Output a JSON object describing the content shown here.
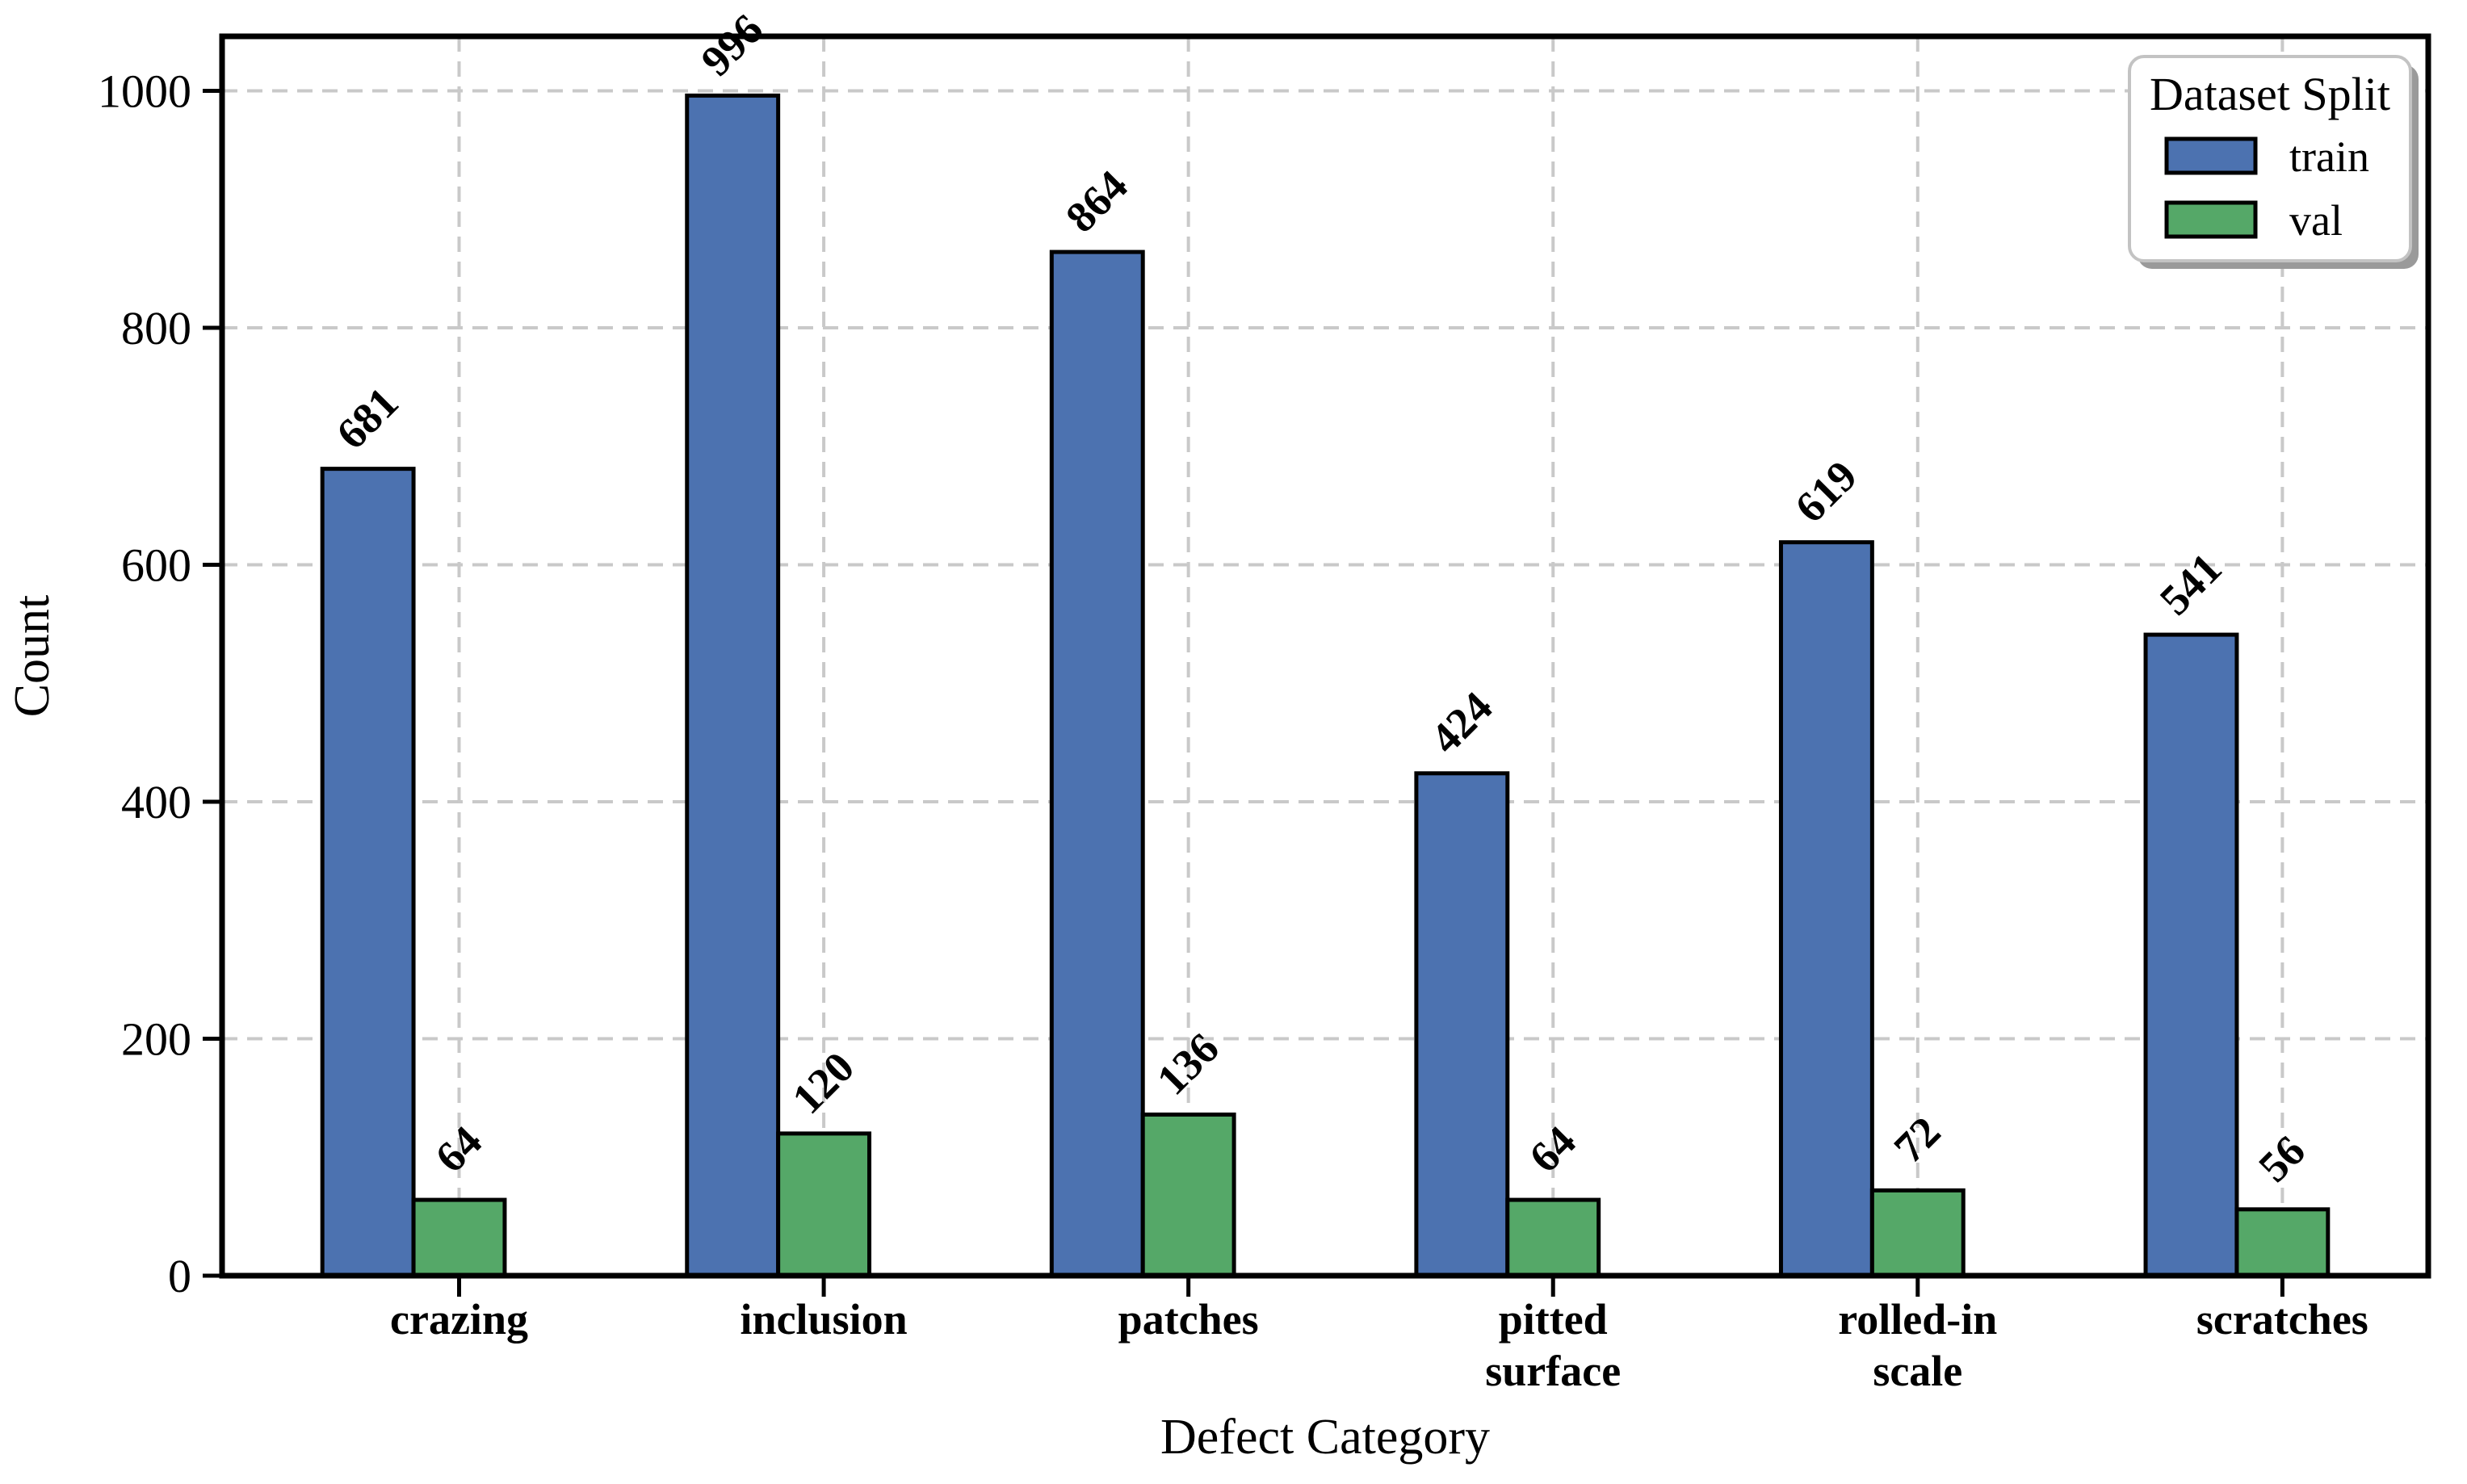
{
  "chart_data": {
    "type": "bar",
    "title": "",
    "xlabel": "Defect Category",
    "ylabel": "Count",
    "categories": [
      "crazing",
      "inclusion",
      "patches",
      "pitted\nsurface",
      "rolled-in\nscale",
      "scratches"
    ],
    "series": [
      {
        "name": "train",
        "color": "#4C72B0",
        "values": [
          681,
          996,
          864,
          424,
          619,
          541
        ]
      },
      {
        "name": "val",
        "color": "#55A868",
        "values": [
          64,
          120,
          136,
          64,
          72,
          56
        ]
      }
    ],
    "value_labels": {
      "train": [
        "681",
        "996",
        "864",
        "424",
        "619",
        "541"
      ],
      "val": [
        "64",
        "120",
        "136",
        "64",
        "72",
        "56"
      ]
    },
    "yticks": [
      "0",
      "200",
      "400",
      "600",
      "800",
      "1000"
    ],
    "ylim": [
      0,
      1046
    ],
    "grid": true,
    "legend": {
      "title": "Dataset Split",
      "position": "upper right",
      "entries": [
        {
          "label": "train",
          "color": "#4C72B0"
        },
        {
          "label": "val",
          "color": "#55A868"
        }
      ]
    },
    "colors": {
      "bar_edge": "#000000",
      "axis": "#000000",
      "grid": "#c9c9c9",
      "legend_border": "#c3c3c3",
      "legend_shadow": "#9a9a9a",
      "background": "#ffffff"
    }
  }
}
